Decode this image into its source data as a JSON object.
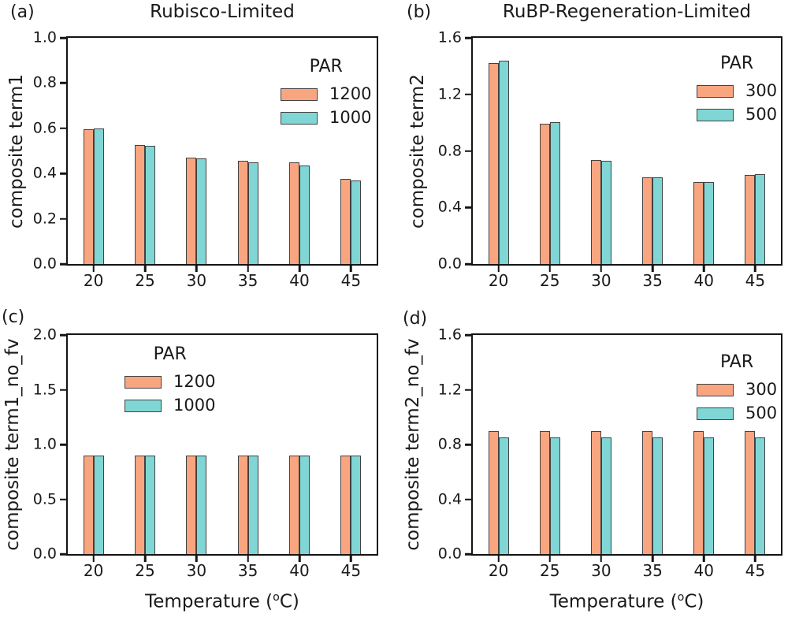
{
  "figure": {
    "xlabel_prefix": "Temperature (",
    "xlabel_sup": "o",
    "xlabel_suffix": "C)"
  },
  "colors": {
    "series1_fill": "#F9A680",
    "series2_fill": "#7FD6D4",
    "bar_edge": "#424242",
    "axis_color": "#141414",
    "text_color": "#1a1a1a"
  },
  "chart_data": [
    {
      "type": "bar",
      "panel_label": "(a)",
      "title": "Rubisco-Limited",
      "ylabel": "composite term1",
      "xlabel": "",
      "legend_title": "PAR",
      "legend_position": "upper right",
      "grid": false,
      "categories": [
        "20",
        "25",
        "30",
        "35",
        "40",
        "45"
      ],
      "series": [
        {
          "name": "1200",
          "values": [
            0.595,
            0.525,
            0.47,
            0.458,
            0.451,
            0.376
          ]
        },
        {
          "name": "1000",
          "values": [
            0.6,
            0.521,
            0.466,
            0.451,
            0.436,
            0.37
          ]
        }
      ],
      "ylim": [
        0,
        1.0
      ],
      "yticks": [
        "0.0",
        "0.2",
        "0.4",
        "0.6",
        "0.8",
        "1.0"
      ]
    },
    {
      "type": "bar",
      "panel_label": "(b)",
      "title": "RuBP-Regeneration-Limited",
      "ylabel": "composite term2",
      "xlabel": "",
      "legend_title": "PAR",
      "legend_position": "upper right",
      "grid": false,
      "categories": [
        "20",
        "25",
        "30",
        "35",
        "40",
        "45"
      ],
      "series": [
        {
          "name": "300",
          "values": [
            1.42,
            0.99,
            0.735,
            0.615,
            0.58,
            0.628
          ]
        },
        {
          "name": "500",
          "values": [
            1.44,
            1.005,
            0.73,
            0.614,
            0.58,
            0.635
          ]
        }
      ],
      "ylim": [
        0,
        1.6
      ],
      "yticks": [
        "0.0",
        "0.4",
        "0.8",
        "1.2",
        "1.6"
      ]
    },
    {
      "type": "bar",
      "panel_label": "(c)",
      "title": "",
      "ylabel": "composite term1_no_fv",
      "xlabel": "Temperature (oC)",
      "legend_title": "PAR",
      "legend_position": "upper left-center",
      "grid": false,
      "categories": [
        "20",
        "25",
        "30",
        "35",
        "40",
        "45"
      ],
      "series": [
        {
          "name": "1200",
          "values": [
            0.9,
            0.9,
            0.9,
            0.9,
            0.9,
            0.9
          ]
        },
        {
          "name": "1000",
          "values": [
            0.9,
            0.9,
            0.9,
            0.9,
            0.9,
            0.9
          ]
        }
      ],
      "ylim": [
        0,
        2.0
      ],
      "yticks": [
        "0.0",
        "0.5",
        "1.0",
        "1.5",
        "2.0"
      ]
    },
    {
      "type": "bar",
      "panel_label": "(d)",
      "title": "",
      "ylabel": "composite term2_no_fv",
      "xlabel": "Temperature (oC)",
      "legend_title": "PAR",
      "legend_position": "upper right",
      "grid": false,
      "categories": [
        "20",
        "25",
        "30",
        "35",
        "40",
        "45"
      ],
      "series": [
        {
          "name": "300",
          "values": [
            0.9,
            0.9,
            0.9,
            0.9,
            0.9,
            0.9
          ]
        },
        {
          "name": "500",
          "values": [
            0.85,
            0.85,
            0.85,
            0.85,
            0.85,
            0.85
          ]
        }
      ],
      "ylim": [
        0,
        1.6
      ],
      "yticks": [
        "0.0",
        "0.4",
        "0.8",
        "1.2",
        "1.6"
      ]
    }
  ]
}
